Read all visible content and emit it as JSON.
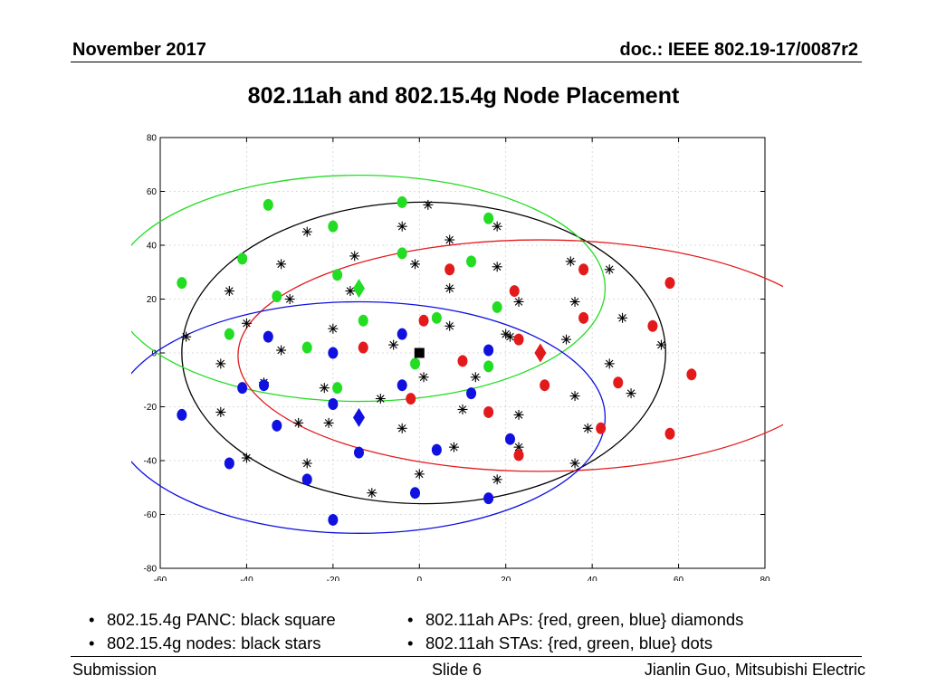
{
  "header": {
    "date": "November 2017",
    "doc_id": "doc.: IEEE 802.19-17/0087r2"
  },
  "slide_title": "802.11ah and 802.15.4g Node Placement",
  "bullets_left": [
    "802.15.4g PANC: black square",
    "802.15.4g nodes: black stars"
  ],
  "bullets_right": [
    "802.11ah APs: {red, green, blue} diamonds",
    "802.11ah STAs: {red, green, blue} dots"
  ],
  "footer": {
    "left": "Submission",
    "center": "Slide 6",
    "right": "Jianlin Guo, Mitsubishi Electric"
  },
  "colors": {
    "red": "#e31a1c",
    "green": "#22dd22",
    "blue": "#1010e0",
    "black": "#000000",
    "grid": "#d0d0d0"
  },
  "chart_data": {
    "type": "scatter",
    "xlim": [
      -60,
      80
    ],
    "ylim": [
      -80,
      80
    ],
    "xticks": [
      -60,
      -40,
      -20,
      0,
      20,
      40,
      60,
      80
    ],
    "yticks": [
      -80,
      -60,
      -40,
      -20,
      0,
      20,
      40,
      60,
      80
    ],
    "grid": true,
    "panc": {
      "marker": "square",
      "color": "black",
      "x": 0,
      "y": 0
    },
    "ellipses": [
      {
        "color": "black",
        "cx": 1,
        "cy": 0,
        "rx": 56,
        "ry": 56
      },
      {
        "color": "green",
        "cx": -14,
        "cy": 24,
        "rx": 57,
        "ry": 42
      },
      {
        "color": "red",
        "cx": 28,
        "cy": -1,
        "rx": 70,
        "ry": 43
      },
      {
        "color": "blue",
        "cx": -14,
        "cy": -24,
        "rx": 57,
        "ry": 43
      }
    ],
    "aps": [
      {
        "color": "green",
        "x": -14,
        "y": 24
      },
      {
        "color": "red",
        "x": 28,
        "y": 0
      },
      {
        "color": "blue",
        "x": -14,
        "y": -24
      }
    ],
    "stas": {
      "green": [
        [
          -55,
          26
        ],
        [
          -35,
          55
        ],
        [
          -41,
          35
        ],
        [
          -20,
          47
        ],
        [
          -4,
          56
        ],
        [
          -33,
          21
        ],
        [
          -19,
          29
        ],
        [
          -4,
          37
        ],
        [
          12,
          34
        ],
        [
          16,
          50
        ],
        [
          -44,
          7
        ],
        [
          -26,
          2
        ],
        [
          -13,
          12
        ],
        [
          4,
          13
        ],
        [
          18,
          17
        ],
        [
          -1,
          -4
        ],
        [
          16,
          -5
        ],
        [
          -19,
          -13
        ]
      ],
      "red": [
        [
          7,
          31
        ],
        [
          22,
          23
        ],
        [
          38,
          31
        ],
        [
          58,
          26
        ],
        [
          38,
          13
        ],
        [
          54,
          10
        ],
        [
          1,
          12
        ],
        [
          -13,
          2
        ],
        [
          10,
          -3
        ],
        [
          23,
          5
        ],
        [
          63,
          -8
        ],
        [
          29,
          -12
        ],
        [
          46,
          -11
        ],
        [
          -2,
          -17
        ],
        [
          16,
          -22
        ],
        [
          42,
          -28
        ],
        [
          58,
          -30
        ],
        [
          23,
          -38
        ]
      ],
      "blue": [
        [
          -35,
          6
        ],
        [
          -20,
          0
        ],
        [
          -4,
          7
        ],
        [
          16,
          1
        ],
        [
          -41,
          -13
        ],
        [
          -36,
          -12
        ],
        [
          -4,
          -12
        ],
        [
          12,
          -15
        ],
        [
          -20,
          -19
        ],
        [
          -55,
          -23
        ],
        [
          -33,
          -27
        ],
        [
          -14,
          -37
        ],
        [
          4,
          -36
        ],
        [
          21,
          -32
        ],
        [
          -44,
          -41
        ],
        [
          -26,
          -47
        ],
        [
          -1,
          -52
        ],
        [
          16,
          -54
        ],
        [
          -20,
          -62
        ]
      ]
    },
    "nodes": [
      [
        -26,
        45
      ],
      [
        -4,
        47
      ],
      [
        2,
        55
      ],
      [
        7,
        42
      ],
      [
        18,
        47
      ],
      [
        -15,
        36
      ],
      [
        -1,
        33
      ],
      [
        -32,
        33
      ],
      [
        18,
        32
      ],
      [
        35,
        34
      ],
      [
        44,
        31
      ],
      [
        -44,
        23
      ],
      [
        -30,
        20
      ],
      [
        -16,
        23
      ],
      [
        7,
        24
      ],
      [
        23,
        19
      ],
      [
        36,
        19
      ],
      [
        -54,
        6
      ],
      [
        -40,
        11
      ],
      [
        -20,
        9
      ],
      [
        -6,
        3
      ],
      [
        7,
        10
      ],
      [
        20,
        7
      ],
      [
        21,
        6
      ],
      [
        34,
        5
      ],
      [
        47,
        13
      ],
      [
        56,
        3
      ],
      [
        -32,
        1
      ],
      [
        -46,
        -4
      ],
      [
        -36,
        -11
      ],
      [
        -22,
        -13
      ],
      [
        -9,
        -17
      ],
      [
        1,
        -9
      ],
      [
        13,
        -9
      ],
      [
        44,
        -4
      ],
      [
        49,
        -15
      ],
      [
        -46,
        -22
      ],
      [
        -28,
        -26
      ],
      [
        -21,
        -26
      ],
      [
        -4,
        -28
      ],
      [
        10,
        -21
      ],
      [
        23,
        -23
      ],
      [
        36,
        -16
      ],
      [
        39,
        -28
      ],
      [
        -40,
        -39
      ],
      [
        -26,
        -41
      ],
      [
        -14,
        -37
      ],
      [
        8,
        -35
      ],
      [
        23,
        -35
      ],
      [
        0,
        -45
      ],
      [
        -11,
        -52
      ],
      [
        18,
        -47
      ],
      [
        36,
        -41
      ]
    ]
  }
}
